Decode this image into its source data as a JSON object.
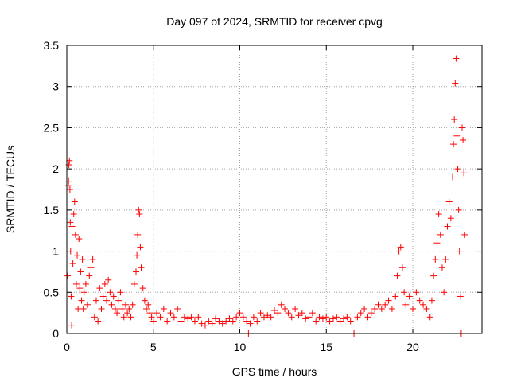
{
  "chart_data": {
    "type": "scatter",
    "title": "Day 097 of 2024, SRMTID for receiver cpvg",
    "xlabel": "GPS time / hours",
    "ylabel": "SRMTID / TECUs",
    "xlim": [
      0,
      24
    ],
    "ylim": [
      0,
      3.5
    ],
    "x_ticks": [
      0,
      5,
      10,
      15,
      20
    ],
    "x_tick_labels": [
      "0",
      "5",
      "10",
      "15",
      "20"
    ],
    "y_ticks": [
      0,
      0.5,
      1,
      1.5,
      2,
      2.5,
      3,
      3.5
    ],
    "y_tick_labels": [
      "0",
      "0.5",
      "1",
      "1.5",
      "2",
      "2.5",
      "3",
      "3.5"
    ],
    "grid": true,
    "marker": "plus",
    "color": "#ff0000",
    "series": [
      {
        "name": "SRMTID",
        "points": [
          [
            0.05,
            0.7
          ],
          [
            0.08,
            1.8
          ],
          [
            0.1,
            1.85
          ],
          [
            0.12,
            2.05
          ],
          [
            0.15,
            2.1
          ],
          [
            0.18,
            1.75
          ],
          [
            0.2,
            1.35
          ],
          [
            0.22,
            1.0
          ],
          [
            0.25,
            0.45
          ],
          [
            0.28,
            0.1
          ],
          [
            0.3,
            1.3
          ],
          [
            0.35,
            0.85
          ],
          [
            0.4,
            1.45
          ],
          [
            0.45,
            1.6
          ],
          [
            0.5,
            1.2
          ],
          [
            0.55,
            0.6
          ],
          [
            0.6,
            0.95
          ],
          [
            0.65,
            0.3
          ],
          [
            0.7,
            1.15
          ],
          [
            0.75,
            0.55
          ],
          [
            0.8,
            0.75
          ],
          [
            0.85,
            0.4
          ],
          [
            0.9,
            0.9
          ],
          [
            0.95,
            0.3
          ],
          [
            1.0,
            0.5
          ],
          [
            1.1,
            0.6
          ],
          [
            1.2,
            0.35
          ],
          [
            1.3,
            0.7
          ],
          [
            1.4,
            0.8
          ],
          [
            1.5,
            0.9
          ],
          [
            1.6,
            0.2
          ],
          [
            1.7,
            0.4
          ],
          [
            1.8,
            0.15
          ],
          [
            1.9,
            0.55
          ],
          [
            2.0,
            0.3
          ],
          [
            2.1,
            0.45
          ],
          [
            2.2,
            0.6
          ],
          [
            2.3,
            0.4
          ],
          [
            2.4,
            0.65
          ],
          [
            2.5,
            0.5
          ],
          [
            2.6,
            0.35
          ],
          [
            2.7,
            0.45
          ],
          [
            2.8,
            0.3
          ],
          [
            2.9,
            0.25
          ],
          [
            3.0,
            0.4
          ],
          [
            3.1,
            0.5
          ],
          [
            3.2,
            0.3
          ],
          [
            3.3,
            0.2
          ],
          [
            3.4,
            0.35
          ],
          [
            3.5,
            0.25
          ],
          [
            3.6,
            0.3
          ],
          [
            3.7,
            0.2
          ],
          [
            3.8,
            0.35
          ],
          [
            3.9,
            0.6
          ],
          [
            4.0,
            0.75
          ],
          [
            4.05,
            0.95
          ],
          [
            4.1,
            1.2
          ],
          [
            4.15,
            1.5
          ],
          [
            4.2,
            1.45
          ],
          [
            4.25,
            1.05
          ],
          [
            4.3,
            0.8
          ],
          [
            4.4,
            0.55
          ],
          [
            4.5,
            0.4
          ],
          [
            4.6,
            0.3
          ],
          [
            4.7,
            0.35
          ],
          [
            4.8,
            0.25
          ],
          [
            4.9,
            0.2
          ],
          [
            5.0,
            0.15
          ],
          [
            5.2,
            0.25
          ],
          [
            5.4,
            0.2
          ],
          [
            5.6,
            0.3
          ],
          [
            5.8,
            0.15
          ],
          [
            6.0,
            0.25
          ],
          [
            6.2,
            0.2
          ],
          [
            6.4,
            0.3
          ],
          [
            6.6,
            0.15
          ],
          [
            6.8,
            0.2
          ],
          [
            7.0,
            0.18
          ],
          [
            7.2,
            0.2
          ],
          [
            7.4,
            0.15
          ],
          [
            7.6,
            0.2
          ],
          [
            7.8,
            0.12
          ],
          [
            8.0,
            0.1
          ],
          [
            8.2,
            0.15
          ],
          [
            8.4,
            0.12
          ],
          [
            8.6,
            0.18
          ],
          [
            8.8,
            0.15
          ],
          [
            9.0,
            0.12
          ],
          [
            9.2,
            0.15
          ],
          [
            9.4,
            0.18
          ],
          [
            9.6,
            0.15
          ],
          [
            9.8,
            0.2
          ],
          [
            10.0,
            0.25
          ],
          [
            10.2,
            0.2
          ],
          [
            10.4,
            0.15
          ],
          [
            10.5,
            0.0
          ],
          [
            10.6,
            0.12
          ],
          [
            10.8,
            0.2
          ],
          [
            11.0,
            0.15
          ],
          [
            11.2,
            0.25
          ],
          [
            11.4,
            0.2
          ],
          [
            11.6,
            0.22
          ],
          [
            11.8,
            0.2
          ],
          [
            12.0,
            0.28
          ],
          [
            12.2,
            0.25
          ],
          [
            12.4,
            0.35
          ],
          [
            12.6,
            0.3
          ],
          [
            12.8,
            0.25
          ],
          [
            13.0,
            0.2
          ],
          [
            13.2,
            0.3
          ],
          [
            13.4,
            0.22
          ],
          [
            13.6,
            0.25
          ],
          [
            13.8,
            0.18
          ],
          [
            14.0,
            0.2
          ],
          [
            14.2,
            0.25
          ],
          [
            14.4,
            0.15
          ],
          [
            14.6,
            0.2
          ],
          [
            14.8,
            0.18
          ],
          [
            15.0,
            0.2
          ],
          [
            15.2,
            0.15
          ],
          [
            15.4,
            0.18
          ],
          [
            15.6,
            0.2
          ],
          [
            15.8,
            0.15
          ],
          [
            16.0,
            0.18
          ],
          [
            16.2,
            0.2
          ],
          [
            16.4,
            0.15
          ],
          [
            16.6,
            0.0
          ],
          [
            16.8,
            0.2
          ],
          [
            17.0,
            0.25
          ],
          [
            17.2,
            0.3
          ],
          [
            17.4,
            0.2
          ],
          [
            17.6,
            0.25
          ],
          [
            17.8,
            0.3
          ],
          [
            18.0,
            0.35
          ],
          [
            18.2,
            0.3
          ],
          [
            18.4,
            0.35
          ],
          [
            18.6,
            0.4
          ],
          [
            18.8,
            0.3
          ],
          [
            19.0,
            0.45
          ],
          [
            19.1,
            0.7
          ],
          [
            19.2,
            1.0
          ],
          [
            19.3,
            1.05
          ],
          [
            19.4,
            0.8
          ],
          [
            19.5,
            0.5
          ],
          [
            19.6,
            0.35
          ],
          [
            19.8,
            0.45
          ],
          [
            20.0,
            0.3
          ],
          [
            20.2,
            0.5
          ],
          [
            20.4,
            0.4
          ],
          [
            20.6,
            0.35
          ],
          [
            20.8,
            0.3
          ],
          [
            21.0,
            0.2
          ],
          [
            21.1,
            0.4
          ],
          [
            21.2,
            0.7
          ],
          [
            21.3,
            0.9
          ],
          [
            21.4,
            1.1
          ],
          [
            21.5,
            1.45
          ],
          [
            21.6,
            1.2
          ],
          [
            21.7,
            0.8
          ],
          [
            21.8,
            0.5
          ],
          [
            21.9,
            0.9
          ],
          [
            22.0,
            1.3
          ],
          [
            22.1,
            1.6
          ],
          [
            22.2,
            1.4
          ],
          [
            22.3,
            1.9
          ],
          [
            22.35,
            2.3
          ],
          [
            22.4,
            2.6
          ],
          [
            22.45,
            3.04
          ],
          [
            22.5,
            3.34
          ],
          [
            22.55,
            2.4
          ],
          [
            22.6,
            2.0
          ],
          [
            22.65,
            1.5
          ],
          [
            22.7,
            1.0
          ],
          [
            22.75,
            0.45
          ],
          [
            22.8,
            0.0
          ],
          [
            22.85,
            2.5
          ],
          [
            22.9,
            2.35
          ],
          [
            22.95,
            1.95
          ],
          [
            23.0,
            1.2
          ]
        ]
      }
    ]
  }
}
